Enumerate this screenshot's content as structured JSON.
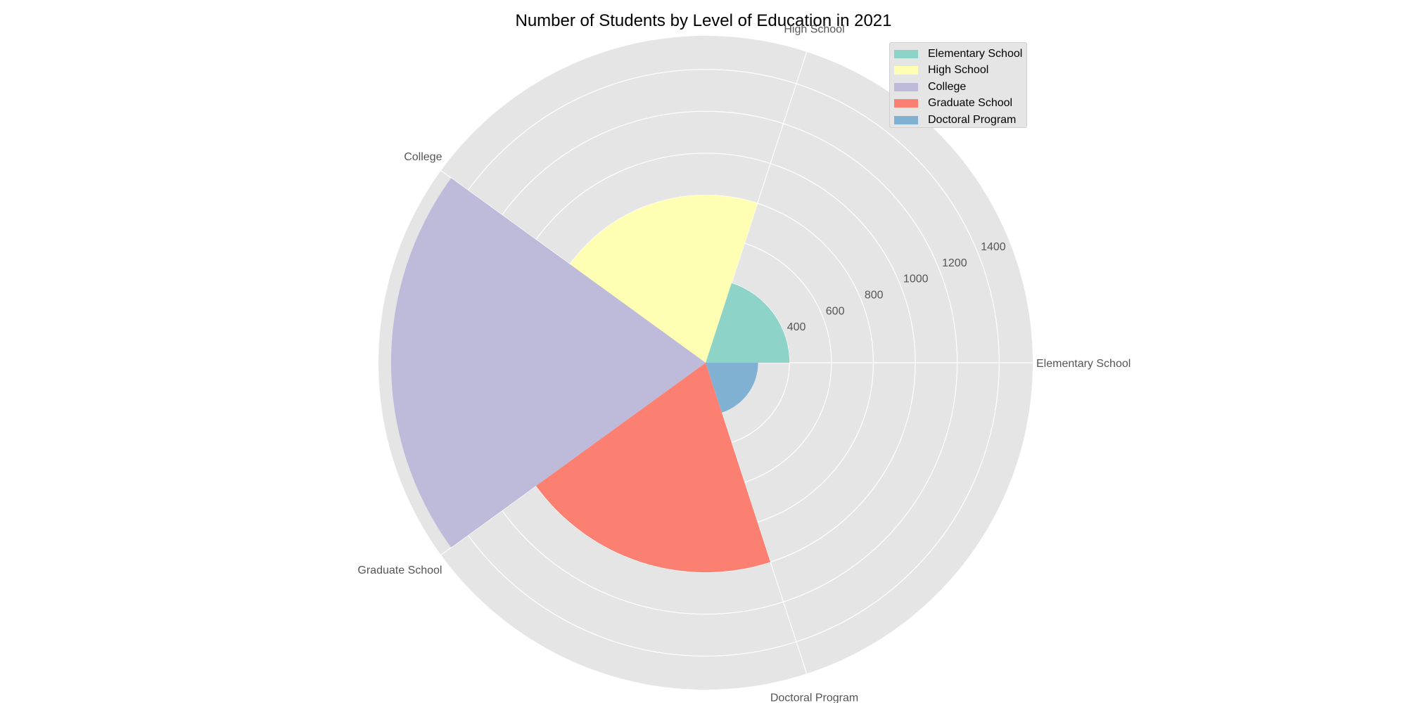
{
  "chart_data": {
    "type": "polar-bar",
    "title": "Number of Students by Level of Education in 2021",
    "categories": [
      "Elementary School",
      "High School",
      "College",
      "Graduate School",
      "Doctoral Program"
    ],
    "values": [
      400,
      800,
      1500,
      1000,
      250
    ],
    "colors": [
      "#8dd3c7",
      "#ffffb3",
      "#bebada",
      "#fb8072",
      "#80b1d3"
    ],
    "radial_ticks": [
      "400",
      "600",
      "800",
      "1000",
      "1200",
      "1400"
    ],
    "rlim": [
      0,
      1560
    ],
    "grid": true,
    "legend_position": "upper-right",
    "legend": [
      "Elementary School",
      "High School",
      "College",
      "Graduate School",
      "Doctoral Program"
    ]
  }
}
